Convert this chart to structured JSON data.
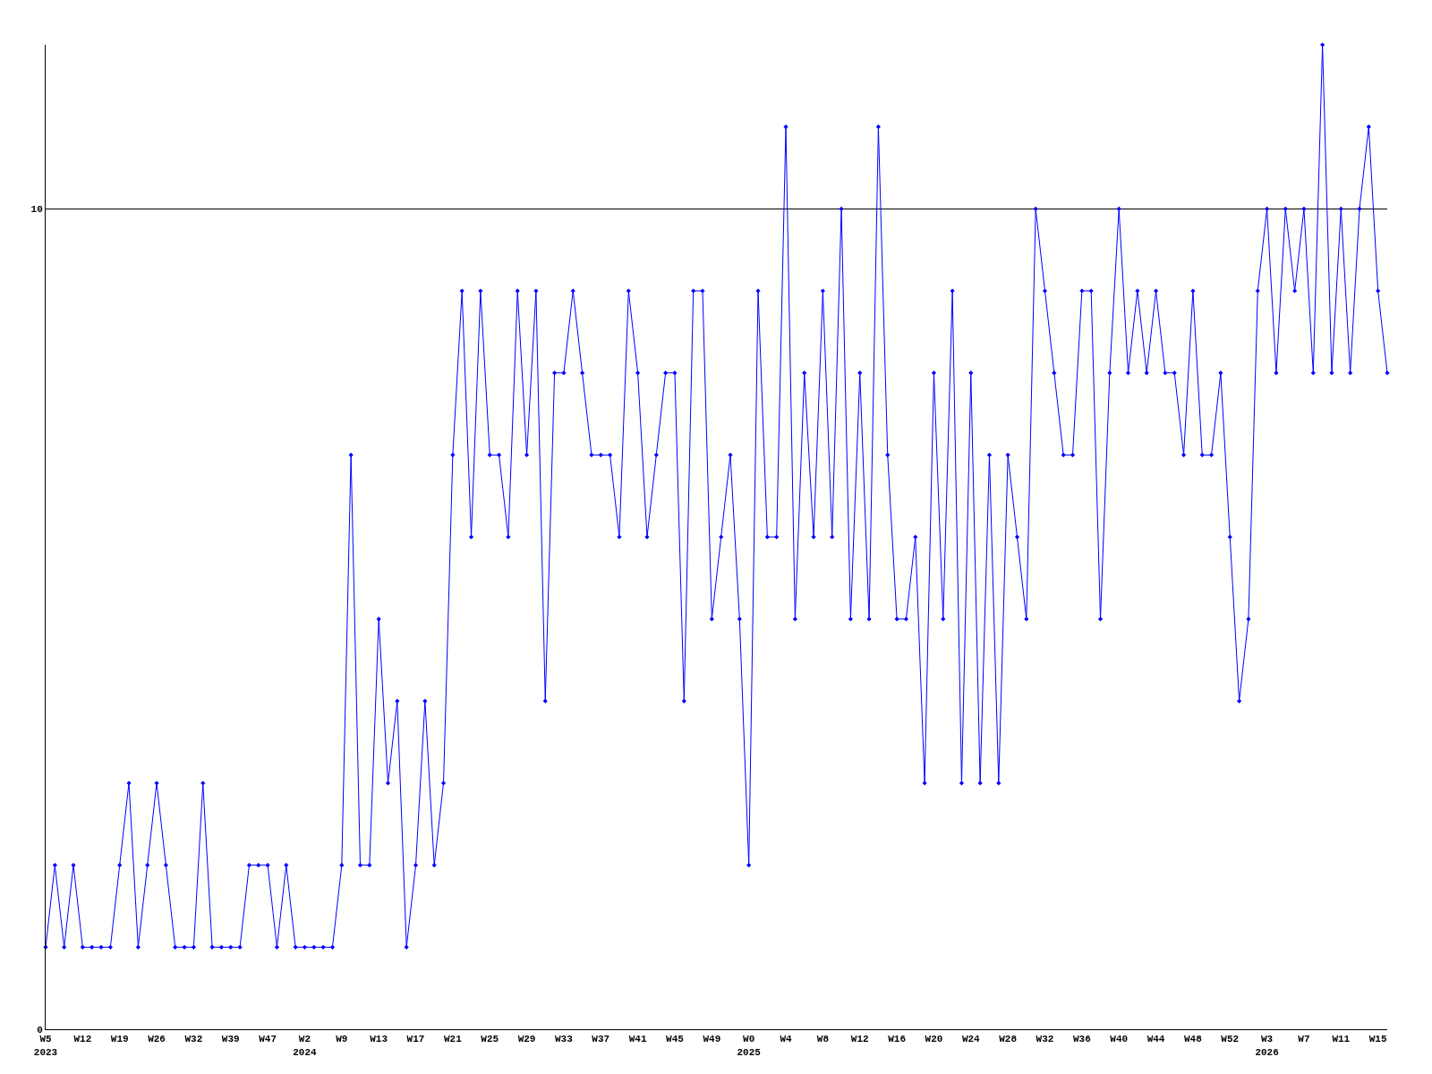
{
  "chart_data": {
    "type": "line",
    "categories": [
      "W5\n2023",
      null,
      null,
      null,
      "W12",
      null,
      null,
      null,
      "W19",
      null,
      null,
      null,
      "W26",
      null,
      null,
      null,
      "W32",
      null,
      null,
      null,
      "W39",
      null,
      null,
      null,
      "W47",
      null,
      null,
      null,
      "W2\n2024",
      null,
      null,
      null,
      "W9",
      null,
      null,
      null,
      "W13",
      null,
      null,
      null,
      "W17",
      null,
      null,
      null,
      "W21",
      null,
      null,
      null,
      "W25",
      null,
      null,
      null,
      "W29",
      null,
      null,
      null,
      "W33",
      null,
      null,
      null,
      "W37",
      null,
      null,
      null,
      "W41",
      null,
      null,
      null,
      "W45",
      null,
      null,
      null,
      "W49",
      null,
      null,
      null,
      "W0\n2025",
      null,
      null,
      null,
      "W4",
      null,
      null,
      null,
      "W8",
      null,
      null,
      null,
      "W12",
      null,
      null,
      null,
      "W16",
      null,
      null,
      null,
      "W20",
      null,
      null,
      null,
      "W24",
      null,
      null,
      null,
      "W28",
      null,
      null,
      null,
      "W32",
      null,
      null,
      null,
      "W36",
      null,
      null,
      null,
      "W40",
      null,
      null,
      null,
      "W44",
      null,
      null,
      null,
      "W48",
      null,
      null,
      null,
      "W52",
      null,
      null,
      null,
      "W3\n2026",
      null,
      null,
      null,
      "W7",
      null,
      null,
      null,
      "W11",
      null,
      null,
      null,
      "W15",
      null
    ],
    "series": [
      {
        "color": "#0000ff",
        "values": [
          1,
          2,
          1,
          2,
          1,
          1,
          1,
          1,
          2,
          3,
          1,
          2,
          3,
          2,
          1,
          1,
          1,
          3,
          1,
          1,
          1,
          1,
          2,
          2,
          2,
          1,
          2,
          1,
          1,
          1,
          1,
          1,
          2,
          7,
          2,
          2,
          5,
          3,
          4,
          1,
          2,
          4,
          2,
          3,
          7,
          9,
          6,
          9,
          7,
          7,
          6,
          9,
          7,
          9,
          4,
          8,
          8,
          9,
          8,
          7,
          7,
          7,
          6,
          9,
          8,
          6,
          7,
          8,
          8,
          4,
          9,
          9,
          5,
          6,
          7,
          5,
          2,
          9,
          6,
          6,
          11,
          5,
          8,
          6,
          9,
          6,
          10,
          5,
          8,
          5,
          11,
          7,
          5,
          5,
          6,
          3,
          8,
          5,
          9,
          3,
          8,
          3,
          7,
          3,
          7,
          6,
          5,
          10,
          9,
          8,
          7,
          7,
          9,
          9,
          5,
          8,
          10,
          8,
          9,
          8,
          9,
          8,
          8,
          7,
          9,
          7,
          7,
          8,
          6,
          4,
          5,
          9,
          10,
          8,
          10,
          9,
          10,
          8,
          12,
          8,
          10,
          8,
          10,
          11,
          9,
          8
        ]
      }
    ],
    "ylim": [
      0,
      12
    ],
    "yticks": [
      0,
      10
    ],
    "grid": "y",
    "marker": "diamond",
    "line_style": "solid"
  }
}
